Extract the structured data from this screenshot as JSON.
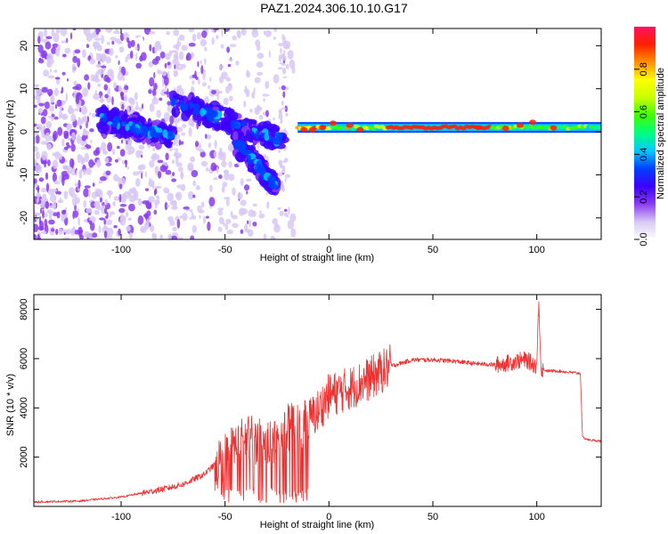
{
  "title": "PAZ1.2024.306.10.10.G17",
  "chart_data": [
    {
      "type": "heatmap",
      "xlabel": "Height of straight line (km)",
      "ylabel": "Frequency (Hz)",
      "xlim": [
        -142,
        131
      ],
      "ylim": [
        -25,
        24
      ],
      "xticks": [
        -100,
        -50,
        0,
        50,
        100
      ],
      "yticks": [
        -20,
        -10,
        0,
        10,
        20
      ],
      "colorbar": {
        "label": "Normalized spectral amplitude",
        "range": [
          0,
          1
        ],
        "ticks": [
          "0.0",
          "0.2",
          "0.4",
          "0.6",
          "0.8"
        ],
        "colors": [
          "#ffffff",
          "#d8c8f4",
          "#8a3cf0",
          "#3c00ff",
          "#0040ff",
          "#00c8ff",
          "#00ff80",
          "#40ff00",
          "#c8ff00",
          "#ffff00",
          "#ff9000",
          "#ff2000",
          "#ff1060"
        ]
      },
      "features": {
        "tones": [
          {
            "x": [
              -110,
              -75
            ],
            "y_start": 3,
            "y_end": -1
          },
          {
            "x": [
              -75,
              -22
            ],
            "y_start": 7,
            "y_end": -2
          },
          {
            "x": [
              -45,
              -25
            ],
            "y_start": -2,
            "y_end": -13
          }
        ],
        "carrier": {
          "x": [
            -15,
            131
          ],
          "frequency_hz": 1,
          "peak_amplitude": 0.95
        }
      }
    },
    {
      "type": "line",
      "xlabel": "Height of straight line (km)",
      "ylabel": "SNR (10 * v/v)",
      "xlim": [
        -142,
        131
      ],
      "ylim": [
        0,
        8600
      ],
      "xticks": [
        -100,
        -50,
        0,
        50,
        100
      ],
      "yticks": [
        2000,
        4000,
        6000,
        8000
      ],
      "color": "#ee3030",
      "x": [
        -142,
        -120,
        -100,
        -80,
        -70,
        -60,
        -50,
        -40,
        -30,
        -20,
        -12,
        -5,
        0,
        10,
        20,
        30,
        40,
        50,
        60,
        70,
        80,
        85,
        90,
        95,
        100,
        101,
        102,
        105,
        110,
        115,
        121,
        122,
        125,
        131
      ],
      "y": [
        180,
        220,
        380,
        700,
        900,
        1300,
        2100,
        2800,
        2500,
        3200,
        3300,
        3900,
        4500,
        4800,
        5200,
        5700,
        5950,
        5950,
        5900,
        5800,
        5750,
        5800,
        5900,
        5950,
        5700,
        8500,
        5600,
        5500,
        5500,
        5450,
        5400,
        2800,
        2700,
        2650
      ]
    }
  ]
}
